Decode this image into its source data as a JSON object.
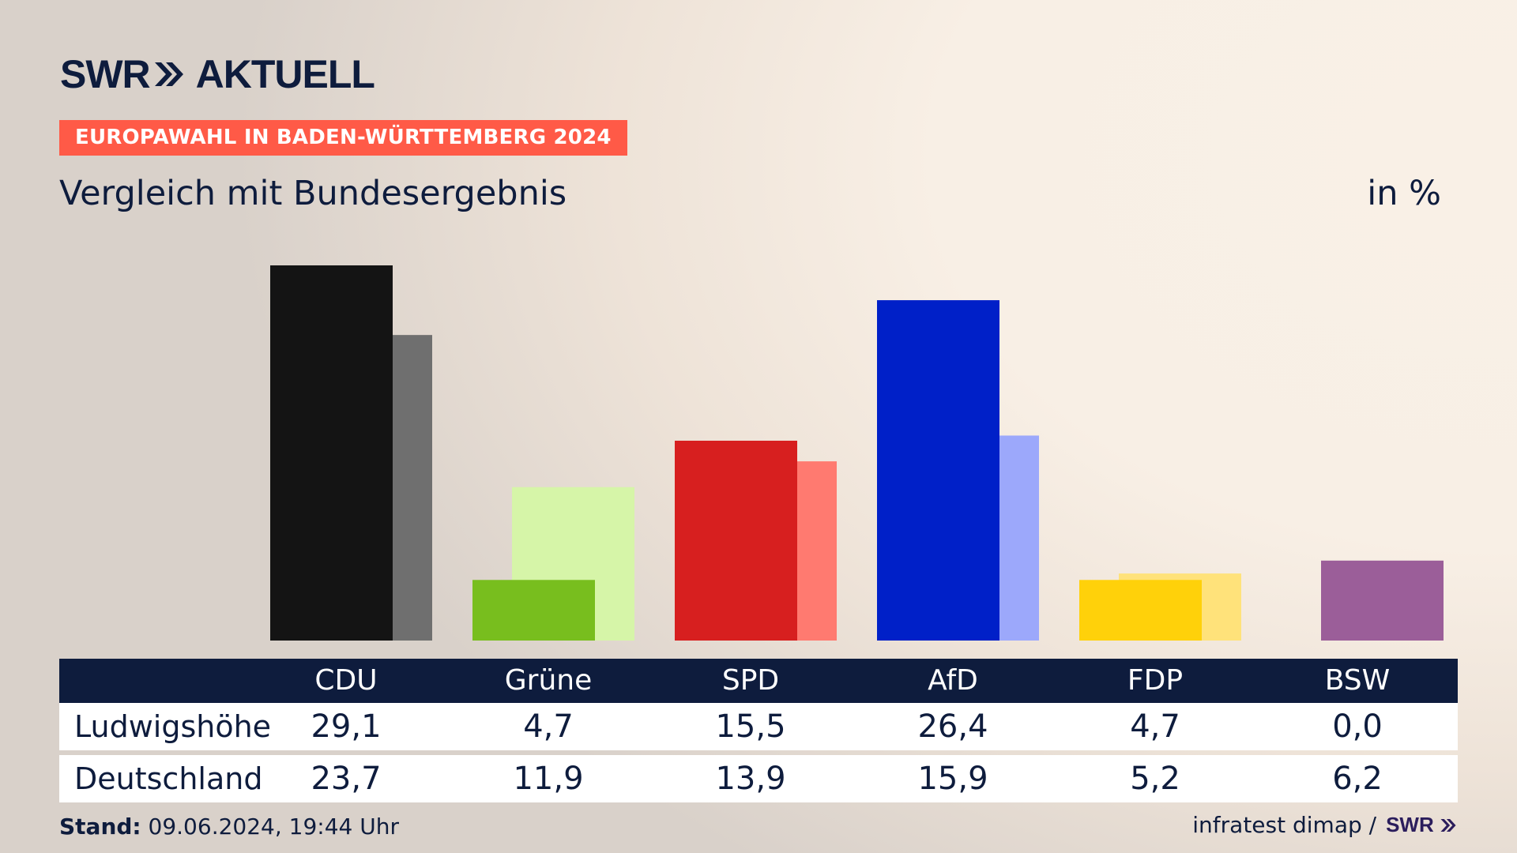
{
  "header": {
    "brand_left": "SWR",
    "brand_right": "AKTUELL",
    "tag": "EUROPAWAHL IN BADEN-WÜRTTEMBERG 2024",
    "subtitle": "Vergleich mit Bundesergebnis",
    "unit": "in %"
  },
  "table": {
    "rows": [
      {
        "label": "Ludwigshöhe",
        "values": [
          "29,1",
          "4,7",
          "15,5",
          "26,4",
          "4,7",
          "0,0"
        ]
      },
      {
        "label": "Deutschland",
        "values": [
          "23,7",
          "11,9",
          "13,9",
          "15,9",
          "5,2",
          "6,2"
        ]
      }
    ]
  },
  "footer": {
    "stand_label": "Stand:",
    "stand_value": "09.06.2024, 19:44 Uhr",
    "source": "infratest dimap /",
    "source_brand": "SWR"
  },
  "colors": {
    "CDU": {
      "local": "#141414",
      "national": "#6f6f6f"
    },
    "Grüne": {
      "local": "#78be1e",
      "national": "#d6f5a8"
    },
    "SPD": {
      "local": "#d71f1f",
      "national": "#ff7a70"
    },
    "AfD": {
      "local": "#0020c8",
      "national": "#9ca8fb"
    },
    "FDP": {
      "local": "#ffd10a",
      "national": "#ffe27a"
    },
    "BSW": {
      "local": "#9b5e99",
      "national": "#9b5e99"
    }
  },
  "chart_data": {
    "type": "bar",
    "categories": [
      "CDU",
      "Grüne",
      "SPD",
      "AfD",
      "FDP",
      "BSW"
    ],
    "series": [
      {
        "name": "Ludwigshöhe",
        "values": [
          29.1,
          4.7,
          15.5,
          26.4,
          4.7,
          0.0
        ]
      },
      {
        "name": "Deutschland",
        "values": [
          23.7,
          11.9,
          13.9,
          15.9,
          5.2,
          6.2
        ]
      }
    ],
    "title": "Vergleich mit Bundesergebnis",
    "ylabel": "in %",
    "ylim": [
      0,
      30
    ],
    "grid": false,
    "legend": "table below chart"
  }
}
